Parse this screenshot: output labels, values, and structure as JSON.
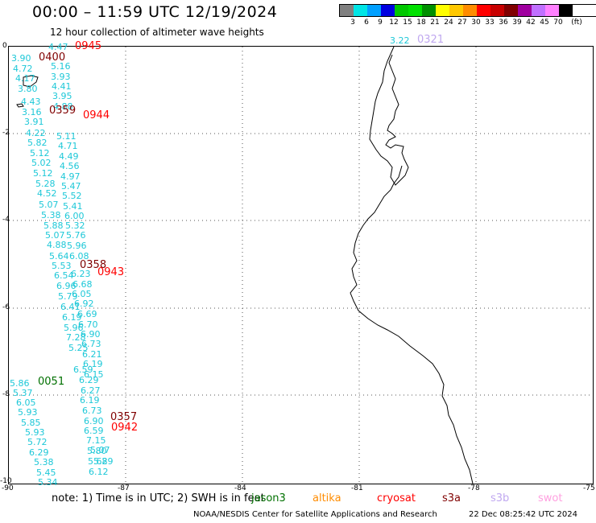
{
  "title": "00:00 – 11:59 UTC 12/19/2024",
  "subtitle": "12 hour collection of altimeter wave heights",
  "legend": {
    "unit": "(ft)",
    "colors": [
      "#808080",
      "#00e5e5",
      "#00a0ff",
      "#0000e0",
      "#00c800",
      "#00e000",
      "#009000",
      "#ffff00",
      "#ffc800",
      "#ff8c00",
      "#ff0000",
      "#c80000",
      "#800000",
      "#a000a0",
      "#c070ff",
      "#ff80ff",
      "#000000"
    ],
    "labels": [
      "3",
      "6",
      "9",
      "12",
      "15",
      "18",
      "21",
      "24",
      "27",
      "30",
      "33",
      "36",
      "39",
      "42",
      "45",
      "70"
    ]
  },
  "axes": {
    "x_ticks": [
      "-90",
      "-87",
      "-84",
      "-81",
      "-78",
      "-75"
    ],
    "y_ticks": [
      "0",
      "-2",
      "-4",
      "-6",
      "-8",
      "-10"
    ]
  },
  "pass_times": [
    {
      "label": "0945",
      "color": "#ff0000"
    },
    {
      "label": "0400",
      "color": "#800000"
    },
    {
      "label": "0359",
      "color": "#800000"
    },
    {
      "label": "0944",
      "color": "#ff0000"
    },
    {
      "label": "0358",
      "color": "#800000"
    },
    {
      "label": "0943",
      "color": "#ff0000"
    },
    {
      "label": "0051",
      "color": "#007000"
    },
    {
      "label": "0357",
      "color": "#800000"
    },
    {
      "label": "0942",
      "color": "#ff0000"
    },
    {
      "label": "0321",
      "color": "#c0a8f0"
    }
  ],
  "wave_labels": [
    "4.47",
    "3.90",
    "4.72",
    "4.17",
    "3.80",
    "5.16",
    "3.93",
    "4.41",
    "3.95",
    "4.88",
    "4.43",
    "3.16",
    "3.91",
    "4.22",
    "5.82",
    "5.12",
    "5.02",
    "5.12",
    "5.28",
    "4.52",
    "5.07",
    "5.38",
    "5.88",
    "5.07",
    "4.88",
    "5.64",
    "5.53",
    "6.54",
    "6.96",
    "5.79",
    "6.41",
    "6.19",
    "5.96",
    "7.28",
    "5.25",
    "5.11",
    "4.71",
    "4.49",
    "4.56",
    "4.97",
    "5.47",
    "5.52",
    "5.41",
    "6.00",
    "5.32",
    "5.76",
    "5.96",
    "6.08",
    "6.23",
    "6.68",
    "6.05",
    "6.92",
    "6.69",
    "6.70",
    "6.90",
    "6.73",
    "6.21",
    "6.19",
    "6.15",
    "6.59",
    "6.29",
    "6.27",
    "6.19",
    "6.73",
    "6.90",
    "6.59",
    "7.15",
    "5.80",
    "5.68",
    "6.12",
    "5.07",
    "5.29",
    "5.86",
    "5.37",
    "6.05",
    "5.93",
    "5.85",
    "5.93",
    "5.72",
    "6.29",
    "5.38",
    "5.45",
    "5.34",
    "3.22"
  ],
  "note": {
    "text": "note:  1) Time is in UTC; 2) SWH is in feet",
    "satellites": [
      {
        "name": "jason3",
        "color": "#007000"
      },
      {
        "name": "altika",
        "color": "#ff8c00"
      },
      {
        "name": "cryosat",
        "color": "#ff0000"
      },
      {
        "name": "s3a",
        "color": "#800000"
      },
      {
        "name": "s3b",
        "color": "#c0a8f0"
      },
      {
        "name": "swot",
        "color": "#ffa0e0"
      }
    ]
  },
  "credit": "NOAA/NESDIS Center for Satellite Applications and Research",
  "generated": "22 Dec 08:25:42 UTC 2024"
}
